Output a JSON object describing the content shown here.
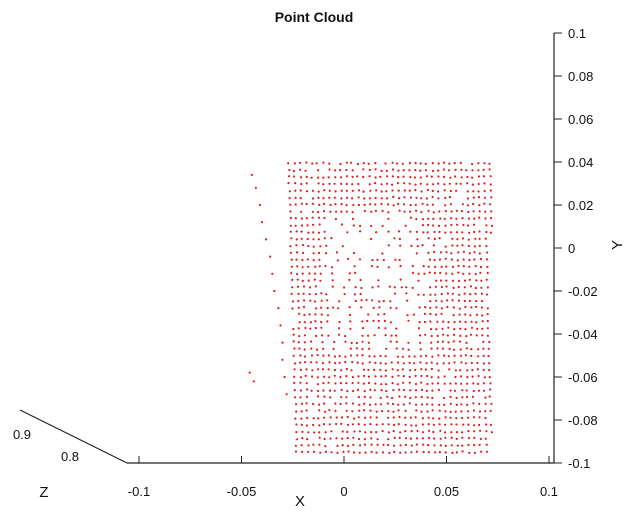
{
  "chart_data": {
    "type": "scatter",
    "title": "Point Cloud",
    "projection": "3d",
    "xlabel": "X",
    "ylabel": "Y",
    "zlabel": "Z",
    "xlim": [
      -0.1,
      0.1
    ],
    "ylim": [
      -0.1,
      0.1
    ],
    "zlim": [
      0.8,
      0.9
    ],
    "xticks": [
      "-0.1",
      "-0.05",
      "0",
      "0.05",
      "0.1"
    ],
    "yticks": [
      "-0.1",
      "-0.08",
      "-0.06",
      "-0.04",
      "-0.02",
      "0",
      "0.02",
      "0.04",
      "0.06",
      "0.08",
      "0.1"
    ],
    "zticks": [
      "0.8",
      "0.9"
    ],
    "grid": false,
    "point_color": "#e41a1c",
    "series": [
      {
        "x_range": [
          -0.025,
          0.072
        ],
        "y_range": [
          -0.095,
          0.04
        ],
        "x_step": 0.0028,
        "y_step": 0.0032,
        "sparse_region": {
          "x": [
            -0.01,
            0.04
          ],
          "y": [
            -0.05,
            0.015
          ]
        },
        "left_edge_outliers": [
          [
            -0.045,
            0.034
          ],
          [
            -0.043,
            0.028
          ],
          [
            -0.041,
            0.02
          ],
          [
            -0.04,
            0.012
          ],
          [
            -0.038,
            0.004
          ],
          [
            -0.036,
            -0.004
          ],
          [
            -0.035,
            -0.012
          ],
          [
            -0.034,
            -0.02
          ],
          [
            -0.046,
            -0.058
          ],
          [
            -0.044,
            -0.062
          ],
          [
            -0.032,
            -0.028
          ],
          [
            -0.031,
            -0.036
          ],
          [
            -0.03,
            -0.044
          ],
          [
            -0.03,
            -0.052
          ],
          [
            -0.029,
            -0.06
          ],
          [
            -0.028,
            -0.068
          ]
        ]
      }
    ]
  }
}
